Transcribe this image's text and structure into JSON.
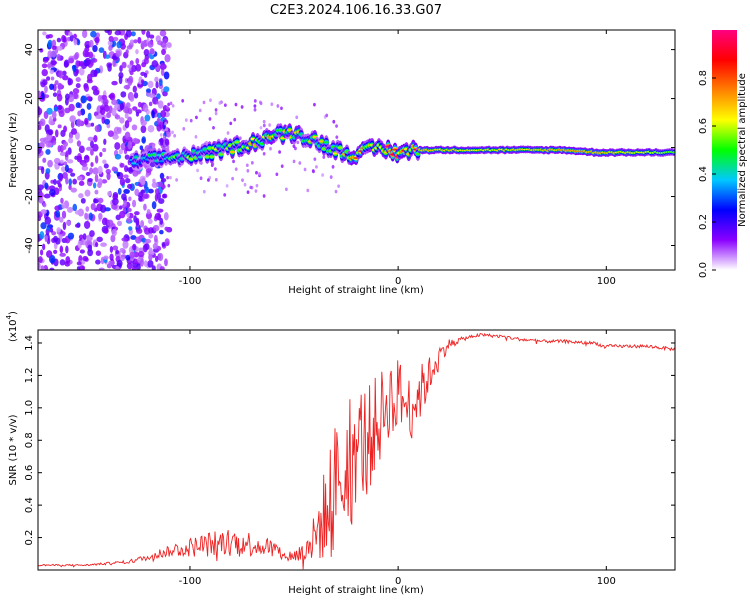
{
  "figure_title": "C2E3.2024.106.16.33.G07",
  "chart_data": [
    {
      "type": "heatmap",
      "title": "C2E3.2024.106.16.33.G07",
      "xlabel": "Height of straight line (km)",
      "ylabel": "Frequency (Hz)",
      "xlim": [
        -173,
        133
      ],
      "ylim": [
        -50,
        48
      ],
      "x_ticks": [
        -100,
        0,
        100
      ],
      "x_tick_labels": [
        "-100",
        "0",
        "100"
      ],
      "y_ticks": [
        -40,
        -20,
        0,
        20,
        40
      ],
      "y_tick_labels": [
        "-40",
        "-20",
        "0",
        "20",
        "40"
      ],
      "grid": false,
      "colorbar": {
        "label": "Normalized spectral amplitude",
        "range": [
          0,
          1
        ],
        "ticks": [
          0.0,
          0.2,
          0.4,
          0.6,
          0.8
        ],
        "tick_labels": [
          "0.0",
          "0.2",
          "0.4",
          "0.6",
          "0.8"
        ],
        "colormap": [
          "#ffffff",
          "#8a00ff",
          "#0000ff",
          "#00c8ff",
          "#00ff00",
          "#ffff00",
          "#ff8000",
          "#ff0000",
          "#ff0080"
        ]
      },
      "features": {
        "noise_region_x": [
          -173,
          -118
        ],
        "ridge_points": [
          {
            "x": -128,
            "freq": -6,
            "amp": 0.35
          },
          {
            "x": -110,
            "freq": -4,
            "amp": 0.45
          },
          {
            "x": -95,
            "freq": -3,
            "amp": 0.5
          },
          {
            "x": -85,
            "freq": -1,
            "amp": 0.55
          },
          {
            "x": -70,
            "freq": 2,
            "amp": 0.6
          },
          {
            "x": -60,
            "freq": 5,
            "amp": 0.6
          },
          {
            "x": -50,
            "freq": 6,
            "amp": 0.55
          },
          {
            "x": -40,
            "freq": 3,
            "amp": 0.55
          },
          {
            "x": -30,
            "freq": -1,
            "amp": 0.55
          },
          {
            "x": -20,
            "freq": -3,
            "amp": 0.65
          },
          {
            "x": -10,
            "freq": 0,
            "amp": 0.7
          },
          {
            "x": 0,
            "freq": -2,
            "amp": 0.85
          },
          {
            "x": 10,
            "freq": -1,
            "amp": 0.7
          },
          {
            "x": 40,
            "freq": -1,
            "amp": 0.6
          },
          {
            "x": 80,
            "freq": -1,
            "amp": 0.7
          },
          {
            "x": 95,
            "freq": -2,
            "amp": 0.7
          },
          {
            "x": 133,
            "freq": -2,
            "amp": 0.55
          }
        ]
      }
    },
    {
      "type": "line",
      "xlabel": "Height of straight line (km)",
      "ylabel": "SNR (10 * v/v)",
      "y_multiplier_label": "(x10",
      "y_multiplier_exponent": "4",
      "y_multiplier_close": ")",
      "xlim": [
        -173,
        133
      ],
      "ylim": [
        0,
        1.48
      ],
      "y_unit_scale": 10000,
      "x_ticks": [
        -100,
        0,
        100
      ],
      "x_tick_labels": [
        "-100",
        "0",
        "100"
      ],
      "y_ticks": [
        0.2,
        0.4,
        0.6,
        0.8,
        1.0,
        1.2,
        1.4
      ],
      "y_tick_labels": [
        "0.2",
        "0.4",
        "0.6",
        "0.8",
        "1.0",
        "1.2",
        "1.4"
      ],
      "grid": false,
      "series": [
        {
          "color": "#ee2222",
          "x": [
            -173,
            -150,
            -130,
            -120,
            -110,
            -100,
            -90,
            -80,
            -70,
            -60,
            -55,
            -50,
            -45,
            -40,
            -35,
            -30,
            -25,
            -20,
            -15,
            -10,
            -5,
            0,
            5,
            10,
            15,
            20,
            25,
            30,
            35,
            40,
            50,
            60,
            70,
            80,
            90,
            95,
            98,
            100,
            110,
            120,
            133
          ],
          "y": [
            0.03,
            0.03,
            0.05,
            0.08,
            0.12,
            0.14,
            0.16,
            0.18,
            0.16,
            0.14,
            0.08,
            0.09,
            0.11,
            0.2,
            0.35,
            0.55,
            0.7,
            0.78,
            0.8,
            0.9,
            1.05,
            1.1,
            1.0,
            1.08,
            1.2,
            1.33,
            1.4,
            1.42,
            1.44,
            1.45,
            1.44,
            1.42,
            1.41,
            1.41,
            1.4,
            1.4,
            1.38,
            1.38,
            1.38,
            1.38,
            1.36
          ],
          "noise": [
            0.005,
            0.005,
            0.01,
            0.02,
            0.04,
            0.06,
            0.08,
            0.08,
            0.08,
            0.05,
            0.03,
            0.04,
            0.08,
            0.15,
            0.3,
            0.38,
            0.4,
            0.38,
            0.35,
            0.3,
            0.25,
            0.22,
            0.2,
            0.18,
            0.12,
            0.06,
            0.03,
            0.015,
            0.01,
            0.01,
            0.01,
            0.01,
            0.01,
            0.01,
            0.01,
            0.01,
            0.01,
            0.01,
            0.01,
            0.01,
            0.01
          ]
        }
      ]
    }
  ]
}
